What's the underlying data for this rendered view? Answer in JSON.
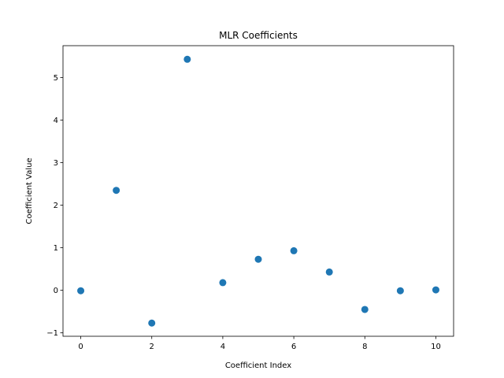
{
  "chart_data": {
    "type": "scatter",
    "title": "MLR Coefficients",
    "xlabel": "Coefficient Index",
    "ylabel": "Coefficient Value",
    "x": [
      0,
      1,
      2,
      3,
      4,
      5,
      6,
      7,
      8,
      9,
      10
    ],
    "y": [
      -0.01,
      2.35,
      -0.77,
      5.43,
      0.18,
      0.73,
      0.93,
      0.43,
      -0.45,
      -0.01,
      0.01
    ],
    "xlim": [
      -0.5,
      10.5
    ],
    "ylim": [
      -1.08,
      5.75
    ],
    "xticks": [
      0,
      2,
      4,
      6,
      8,
      10
    ],
    "yticks": [
      -1,
      0,
      1,
      2,
      3,
      4,
      5
    ],
    "marker_color": "#1f77b4",
    "grid": false,
    "legend": "none"
  }
}
